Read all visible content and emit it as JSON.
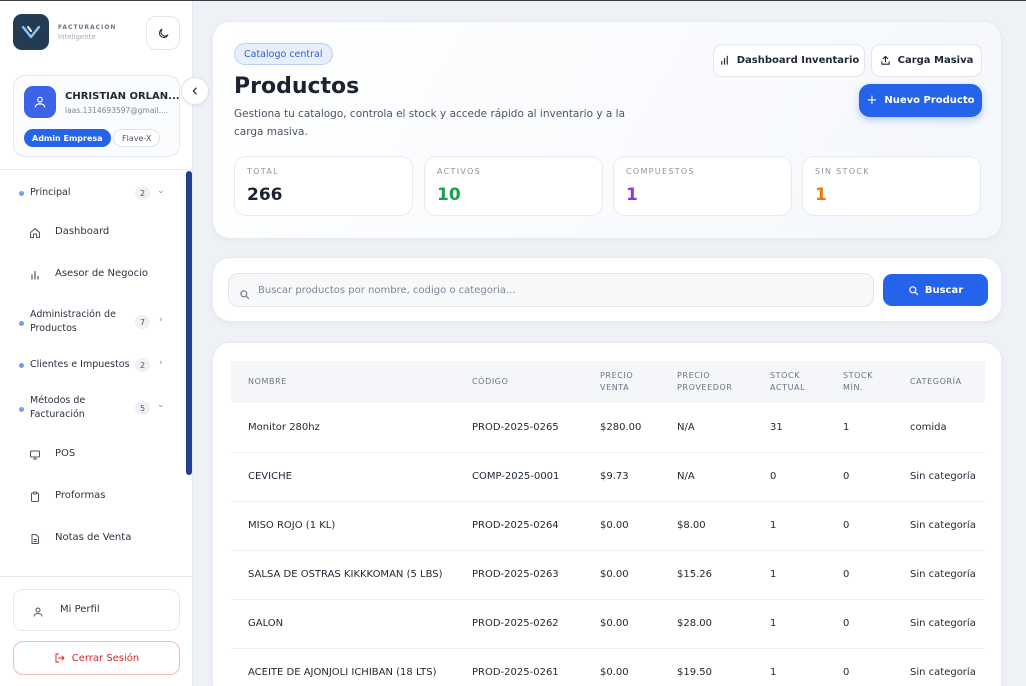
{
  "brand": {
    "line1": "FACTURACION",
    "line2": "Inteligente"
  },
  "user": {
    "name": "CHRISTIAN ORLAN...",
    "email": "laas.1314693597@gmail....",
    "role": "Admin Empresa",
    "company": "Flave-X"
  },
  "nav": {
    "principal": {
      "label": "Principal",
      "count": "2"
    },
    "dashboard": "Dashboard",
    "asesor": "Asesor de Negocio",
    "admin_productos": {
      "label": "Administración de Productos",
      "count": "7"
    },
    "clientes": {
      "label": "Clientes e Impuestos",
      "count": "2"
    },
    "metodos": {
      "label": "Métodos de Facturación",
      "count": "5"
    },
    "pos": "POS",
    "proformas": "Proformas",
    "notas": "Notas de Venta"
  },
  "footer_nav": {
    "profile": "Mi Perfil",
    "logout": "Cerrar Sesión"
  },
  "header": {
    "chip": "Catalogo central",
    "title": "Productos",
    "subtitle": "Gestiona tu catalogo, controla el stock y accede rápido al inventario y a la carga masiva.",
    "btn_dashboard": "Dashboard Inventario",
    "btn_carga": "Carga Masiva",
    "btn_nuevo": "Nuevo Producto"
  },
  "stats": [
    {
      "label": "TOTAL",
      "value": "266",
      "color": "#1b2230"
    },
    {
      "label": "ACTIVOS",
      "value": "10",
      "color": "#16a34a"
    },
    {
      "label": "COMPUESTOS",
      "value": "1",
      "color": "#9333ea"
    },
    {
      "label": "SIN STOCK",
      "value": "1",
      "color": "#ea7a0c"
    }
  ],
  "search": {
    "placeholder": "Buscar productos por nombre, codigo o categoria...",
    "button": "Buscar"
  },
  "table": {
    "headers": [
      "NOMBRE",
      "CÓDIGO",
      "PRECIO VENTA",
      "PRECIO PROVEEDOR",
      "STOCK ACTUAL",
      "STOCK MÍN.",
      "CATEGORÍA"
    ],
    "rows": [
      [
        "Monitor 280hz",
        "PROD-2025-0265",
        "$280.00",
        "N/A",
        "31",
        "1",
        "comida"
      ],
      [
        "CEVICHE",
        "COMP-2025-0001",
        "$9.73",
        "N/A",
        "0",
        "0",
        "Sin categoría"
      ],
      [
        "MISO ROJO (1 KL)",
        "PROD-2025-0264",
        "$0.00",
        "$8.00",
        "1",
        "0",
        "Sin categoría"
      ],
      [
        "SALSA DE OSTRAS KIKKKOMAN (5 LBS)",
        "PROD-2025-0263",
        "$0.00",
        "$15.26",
        "1",
        "0",
        "Sin categoría"
      ],
      [
        "GALON",
        "PROD-2025-0262",
        "$0.00",
        "$28.00",
        "1",
        "0",
        "Sin categoría"
      ],
      [
        "ACEITE DE AJONJOLI ICHIBAN (18 LTS)",
        "PROD-2025-0261",
        "$0.00",
        "$19.50",
        "1",
        "0",
        "Sin categoría"
      ]
    ]
  },
  "colors": {
    "primary": "#2563eb",
    "sidebar_scroll": "#253f8f",
    "logout": "#dc2626"
  }
}
